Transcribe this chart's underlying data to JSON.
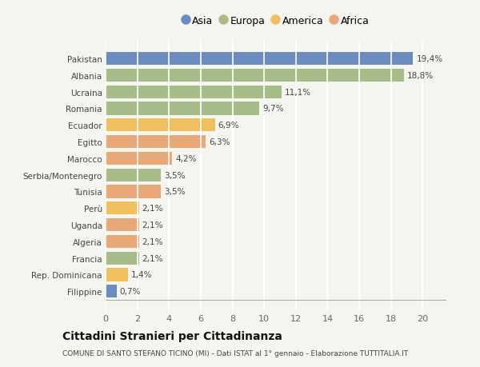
{
  "categories": [
    "Filippine",
    "Rep. Dominicana",
    "Francia",
    "Algeria",
    "Uganda",
    "Perù",
    "Tunisia",
    "Serbia/Montenegro",
    "Marocco",
    "Egitto",
    "Ecuador",
    "Romania",
    "Ucraina",
    "Albania",
    "Pakistan"
  ],
  "values": [
    0.7,
    1.4,
    2.1,
    2.1,
    2.1,
    2.1,
    3.5,
    3.5,
    4.2,
    6.3,
    6.9,
    9.7,
    11.1,
    18.8,
    19.4
  ],
  "colors": [
    "#6b8cbf",
    "#f0c060",
    "#a8bc8a",
    "#e8a878",
    "#e8a878",
    "#f0c060",
    "#e8a878",
    "#a8bc8a",
    "#e8a878",
    "#e8a878",
    "#f0c060",
    "#a8bc8a",
    "#a8bc8a",
    "#a8bc8a",
    "#6b8cbf"
  ],
  "labels": [
    "0,7%",
    "1,4%",
    "2,1%",
    "2,1%",
    "2,1%",
    "2,1%",
    "3,5%",
    "3,5%",
    "4,2%",
    "6,3%",
    "6,9%",
    "9,7%",
    "11,1%",
    "18,8%",
    "19,4%"
  ],
  "xlim": [
    0,
    21.5
  ],
  "xticks": [
    0,
    2,
    4,
    6,
    8,
    10,
    12,
    14,
    16,
    18,
    20
  ],
  "legend_entries": [
    {
      "label": "Asia",
      "color": "#6b8cbf"
    },
    {
      "label": "Europa",
      "color": "#a8bc8a"
    },
    {
      "label": "America",
      "color": "#f0c060"
    },
    {
      "label": "Africa",
      "color": "#e8a878"
    }
  ],
  "title": "Cittadini Stranieri per Cittadinanza",
  "subtitle": "COMUNE DI SANTO STEFANO TICINO (MI) - Dati ISTAT al 1° gennaio - Elaborazione TUTTITALIA.IT",
  "background_color": "#f5f5f0",
  "grid_color": "#ffffff",
  "bar_height": 0.78
}
